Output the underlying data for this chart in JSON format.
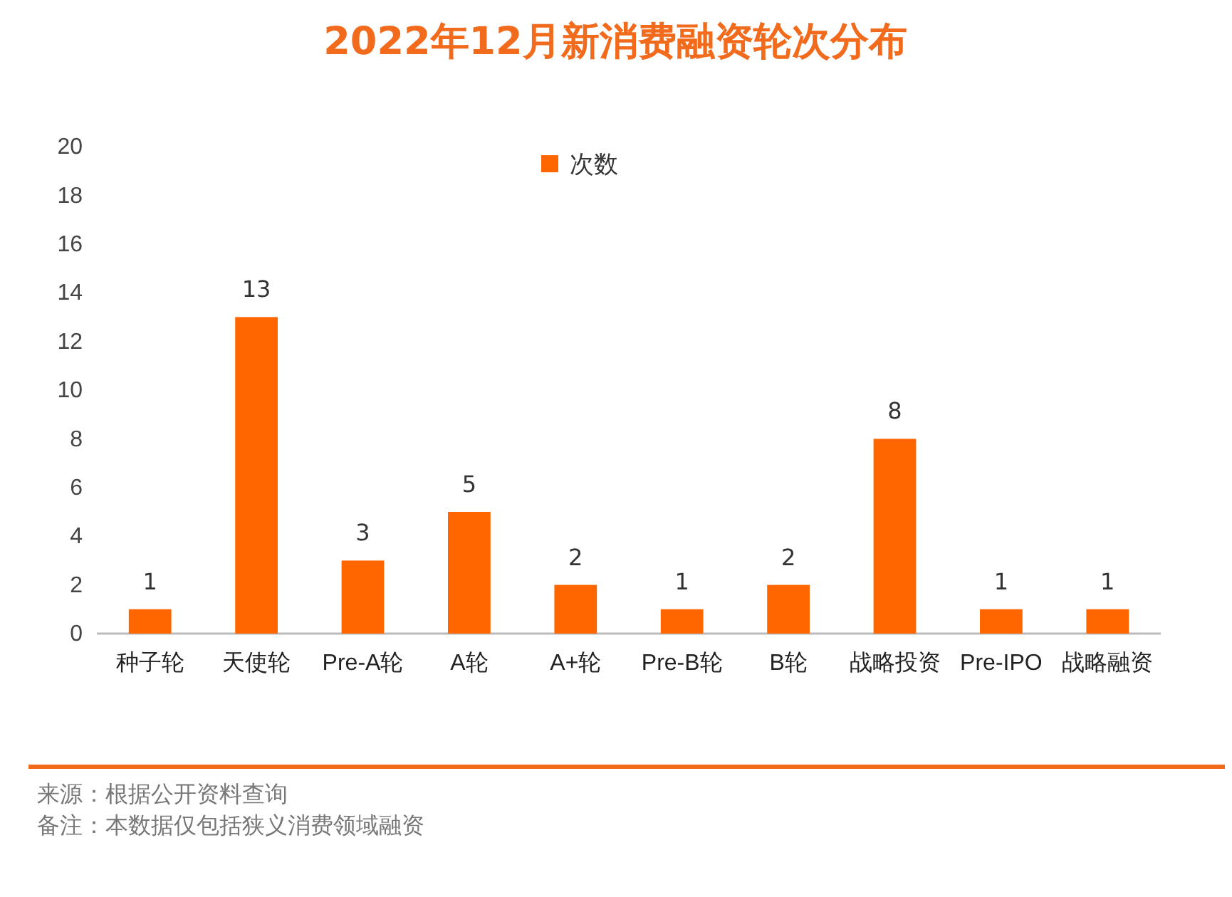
{
  "chart_data": {
    "type": "bar",
    "title": "2022年12月新消费融资轮次分布",
    "categories": [
      "种子轮",
      "天使轮",
      "Pre-A轮",
      "A轮",
      "A+轮",
      "Pre-B轮",
      "B轮",
      "战略投资",
      "Pre-IPO",
      "战略融资"
    ],
    "series": [
      {
        "name": "次数",
        "color": "#ff6600",
        "values": [
          1,
          13,
          3,
          5,
          2,
          1,
          2,
          8,
          1,
          1
        ]
      }
    ],
    "ylim": [
      0,
      20
    ],
    "yticks": [
      0,
      2,
      4,
      6,
      8,
      10,
      12,
      14,
      16,
      18,
      20
    ],
    "data_labels": true,
    "legend": "top",
    "grid": false,
    "annotations": [
      "来源：根据公开资料查询",
      "备注：本数据仅包括狭义消费领域融资"
    ]
  }
}
